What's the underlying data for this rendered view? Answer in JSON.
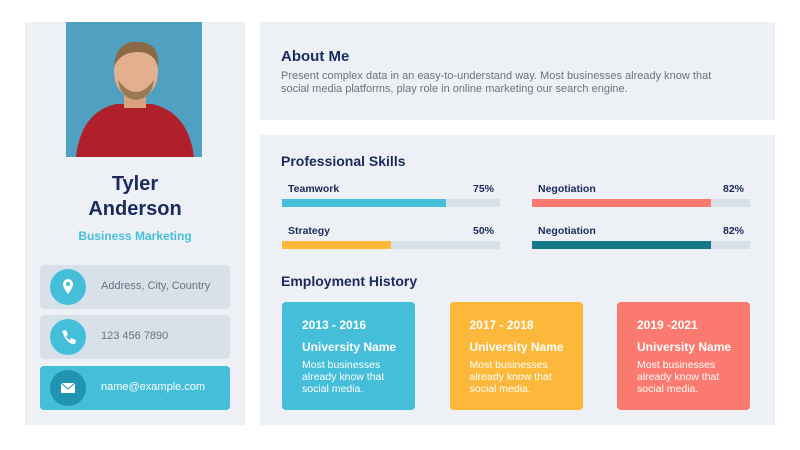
{
  "profile": {
    "name": "Tyler Anderson",
    "role": "Business Marketing"
  },
  "contacts": [
    "Address, City, Country",
    "123 456 7890",
    "name@example.com"
  ],
  "about": {
    "title": "About Me",
    "text": "Present complex data in an easy-to-understand way. Most businesses already know that social media platforms, play role in online marketing our search engine."
  },
  "skills": {
    "title": "Professional Skills",
    "names": [
      "Teamwork",
      "Negotiation",
      "Strategy",
      "Negotiation"
    ],
    "values": [
      75,
      82,
      50,
      82
    ],
    "value_labels": [
      "75%",
      "82%",
      "50%",
      "82%"
    ],
    "colors": [
      "#45bfd9",
      "#fb7a6f",
      "#fbb83b",
      "#17788a"
    ],
    "xlim": [
      0,
      100
    ]
  },
  "employment": {
    "title": "Employment History",
    "items": [
      {
        "years": "2013 - 2016",
        "title": "University Name",
        "text": "Most businesses already know that social media.",
        "color": "#45bfd9"
      },
      {
        "years": "2017 - 2018",
        "title": "University Name",
        "text": "Most businesses already know that social media.",
        "color": "#fbb83b"
      },
      {
        "years": "2019 -2021",
        "title": "University Name",
        "text": "Most businesses already know that social media.",
        "color": "#fb7a6f"
      }
    ]
  }
}
